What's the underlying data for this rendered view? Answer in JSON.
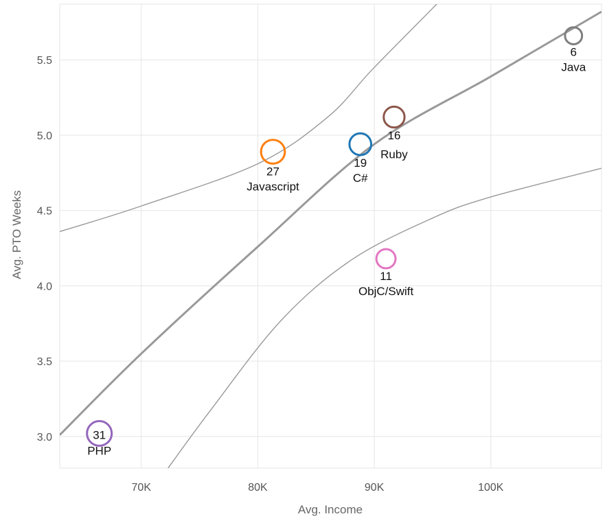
{
  "chart_data": {
    "type": "scatter",
    "title": "",
    "xlabel": "Avg. Income",
    "ylabel": "Avg. PTO Weeks",
    "xlim": [
      63000,
      109500
    ],
    "ylim": [
      2.79,
      5.87
    ],
    "grid": true,
    "x_ticks": [
      70000,
      80000,
      90000,
      100000
    ],
    "x_tick_labels": [
      "70K",
      "80K",
      "90K",
      "100K"
    ],
    "y_ticks": [
      3.0,
      3.5,
      4.0,
      4.5,
      5.0,
      5.5
    ],
    "y_tick_labels": [
      "3.0",
      "3.5",
      "4.0",
      "4.5",
      "5.0",
      "5.5"
    ],
    "points": [
      {
        "label": "PHP",
        "count": "31",
        "x": 66400,
        "y": 3.02,
        "color": "#9467bd"
      },
      {
        "label": "Javascript",
        "count": "27",
        "x": 81300,
        "y": 4.89,
        "color": "#ff7f0e"
      },
      {
        "label": "C#",
        "count": "19",
        "x": 88800,
        "y": 4.94,
        "color": "#1f77b4"
      },
      {
        "label": "Ruby",
        "count": "16",
        "x": 91700,
        "y": 5.12,
        "color": "#8c564b"
      },
      {
        "label": "ObjC/Swift",
        "count": "11",
        "x": 91000,
        "y": 4.18,
        "color": "#e377c2"
      },
      {
        "label": "Java",
        "count": "6",
        "x": 107100,
        "y": 5.66,
        "color": "#7f7f7f"
      }
    ],
    "trend_line": {
      "x": [
        63000,
        70000,
        80000,
        90000,
        100000,
        109500
      ],
      "y": [
        3.01,
        3.55,
        4.26,
        4.94,
        5.39,
        5.82
      ],
      "color": "#999999"
    },
    "upper_band": {
      "x": [
        63000,
        70000,
        80000,
        86000,
        90000,
        96000
      ],
      "y": [
        4.36,
        4.53,
        4.81,
        5.12,
        5.45,
        5.92
      ],
      "color": "#999999"
    },
    "lower_band": {
      "x": [
        72300,
        76000,
        82000,
        88000,
        95000,
        100000,
        109500
      ],
      "y": [
        2.79,
        3.18,
        3.77,
        4.17,
        4.45,
        4.59,
        4.78
      ],
      "color": "#999999"
    },
    "grid_color": "#e5e5e5"
  }
}
